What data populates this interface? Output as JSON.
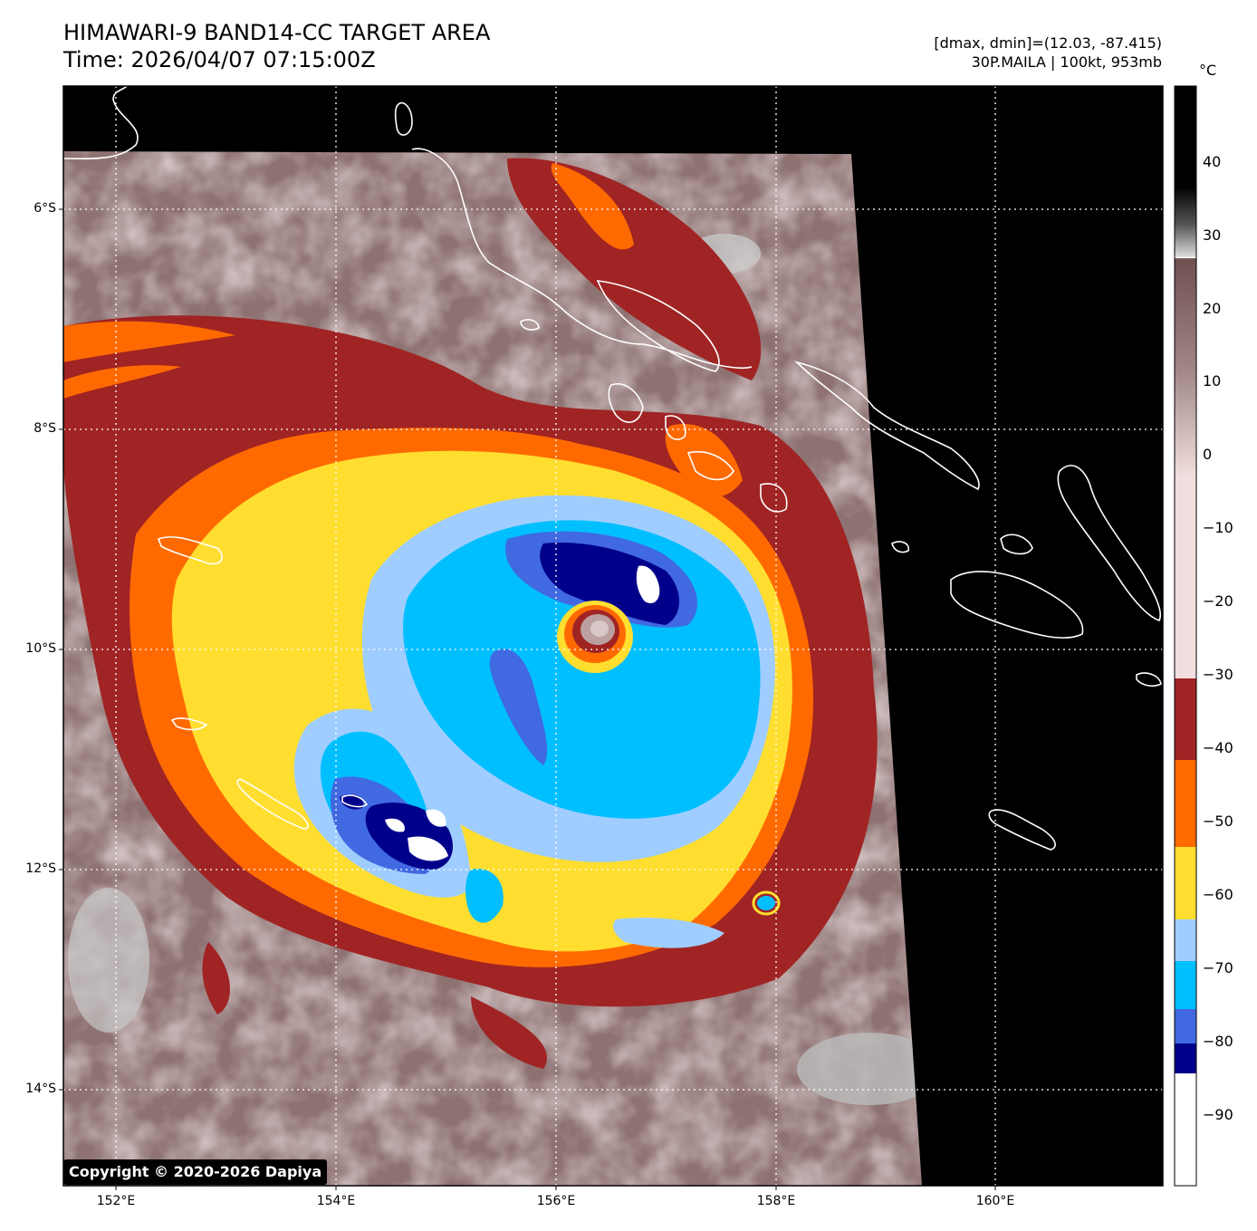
{
  "header": {
    "title": "HIMAWARI-9 BAND14-CC TARGET AREA",
    "time": "Time: 2026/04/07 07:15:00Z",
    "dminmax": "[dmax, dmin]=(12.03, -87.415)",
    "storm": "30P.MAILA | 100kt, 953mb"
  },
  "axes": {
    "lat_labels": [
      "6°S",
      "8°S",
      "10°S",
      "12°S",
      "14°S"
    ],
    "lon_labels": [
      "152°E",
      "154°E",
      "156°E",
      "158°E",
      "160°E"
    ]
  },
  "colorbar": {
    "unit": "°C",
    "ticks": [
      "40",
      "30",
      "20",
      "10",
      "0",
      "−10",
      "−20",
      "−30",
      "−40",
      "−50",
      "−60",
      "−70",
      "−80",
      "−90"
    ]
  },
  "copyright": "Copyright © 2020-2026 Dapiya",
  "colors": {
    "background": "#000000",
    "warm_cloud": "#c4a4a4",
    "band_minus40": "#a02424",
    "band_minus50": "#ff6a00",
    "band_minus60": "#ffde30",
    "band_minus70": "#a0cdff",
    "band_minus75": "#00bfff",
    "band_minus80": "#4169e1",
    "band_minus85": "#00008b",
    "band_coldest": "#ffffff"
  }
}
